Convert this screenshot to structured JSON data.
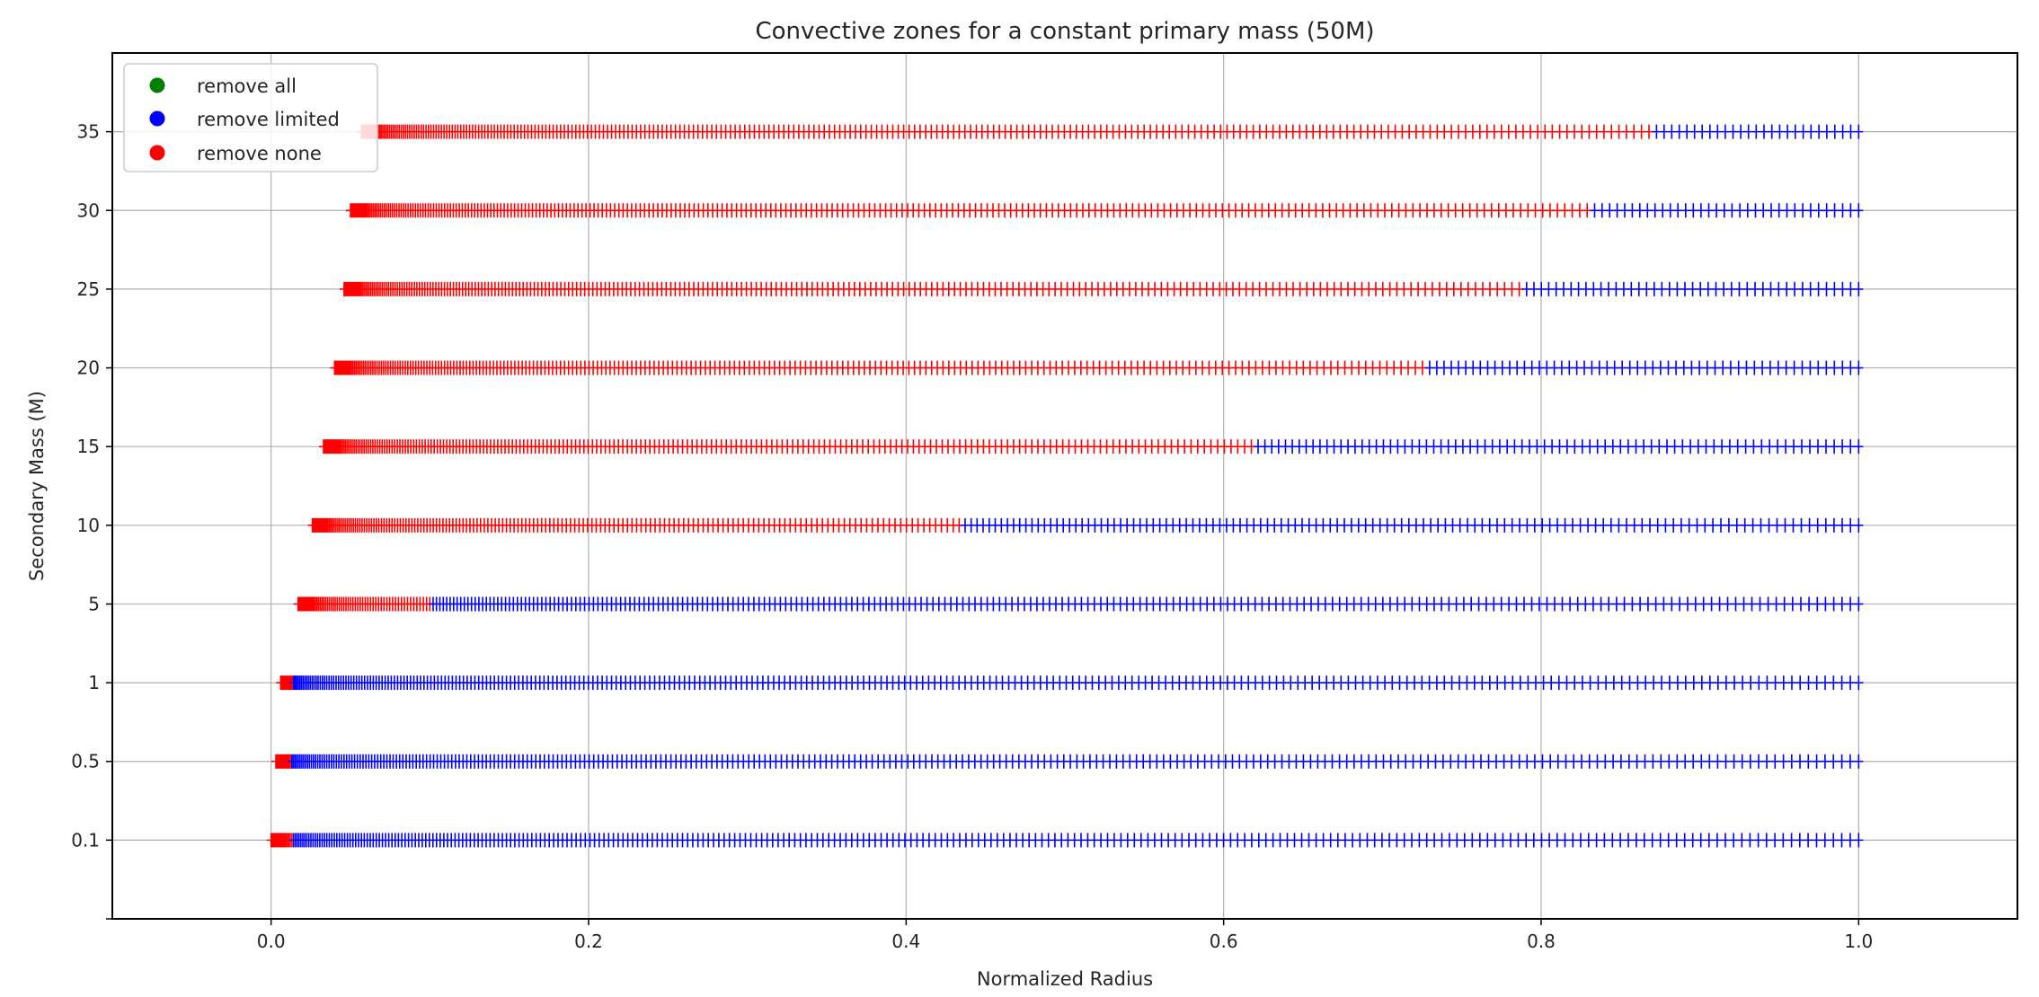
{
  "chart_data": {
    "type": "scatter",
    "title": "Convective zones for a constant primary mass (50M)",
    "xlabel": "Normalized Radius",
    "ylabel": "Secondary Mass (M)",
    "xlim": [
      -0.1,
      1.1
    ],
    "x_ticks": [
      "0.0",
      "0.2",
      "0.4",
      "0.6",
      "0.8",
      "1.0"
    ],
    "categories": [
      "0.1",
      "0.5",
      "1",
      "5",
      "10",
      "15",
      "20",
      "25",
      "30",
      "35"
    ],
    "grid": true,
    "legend_position": "top-left",
    "marker": "+",
    "series": [
      {
        "name": "remove all",
        "color": "#008000"
      },
      {
        "name": "remove limited",
        "color": "#0000ff"
      },
      {
        "name": "remove none",
        "color": "#ff0000"
      }
    ],
    "rows": [
      {
        "secondary_mass": "0.1",
        "start": 0.0,
        "red_end": 0.014,
        "end": 1.0
      },
      {
        "secondary_mass": "0.5",
        "start": 0.003,
        "red_end": 0.013,
        "end": 1.0
      },
      {
        "secondary_mass": "1",
        "start": 0.006,
        "red_end": 0.014,
        "end": 1.0
      },
      {
        "secondary_mass": "5",
        "start": 0.017,
        "red_end": 0.1,
        "end": 1.0
      },
      {
        "secondary_mass": "10",
        "start": 0.026,
        "red_end": 0.435,
        "end": 1.0
      },
      {
        "secondary_mass": "15",
        "start": 0.033,
        "red_end": 0.618,
        "end": 1.0
      },
      {
        "secondary_mass": "20",
        "start": 0.04,
        "red_end": 0.726,
        "end": 1.0
      },
      {
        "secondary_mass": "25",
        "start": 0.046,
        "red_end": 0.79,
        "end": 1.0
      },
      {
        "secondary_mass": "30",
        "start": 0.05,
        "red_end": 0.833,
        "end": 1.0
      },
      {
        "secondary_mass": "35",
        "start": 0.057,
        "red_end": 0.868,
        "end": 1.0
      }
    ]
  }
}
